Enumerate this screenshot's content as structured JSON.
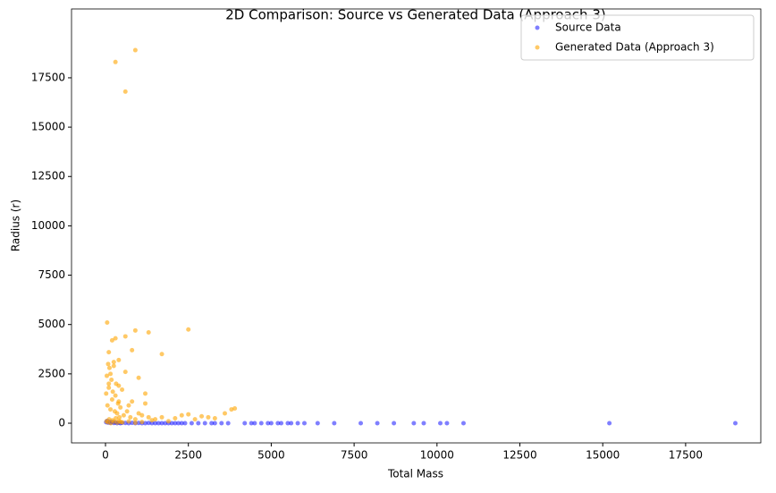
{
  "chart_data": {
    "type": "scatter",
    "title": "2D Comparison: Source vs Generated Data (Approach 3)",
    "x_label": "Total Mass",
    "y_label": "Radius (r)",
    "xlim": [
      -1025,
      19768
    ],
    "ylim": [
      -997,
      20988
    ],
    "xticks": [
      0,
      2500,
      5000,
      7500,
      10000,
      12500,
      15000,
      17500
    ],
    "yticks": [
      0,
      2500,
      5000,
      7500,
      10000,
      12500,
      15000,
      17500
    ],
    "legend": "upper right",
    "series": [
      {
        "name": "Source Data",
        "color": "blue",
        "x": [
          20,
          50,
          80,
          120,
          150,
          200,
          250,
          300,
          350,
          400,
          450,
          500,
          600,
          700,
          800,
          900,
          1000,
          1100,
          1200,
          1300,
          1400,
          1500,
          1600,
          1700,
          1800,
          1900,
          2000,
          2100,
          2200,
          2300,
          2400,
          2600,
          2800,
          3000,
          3200,
          3300,
          3500,
          3700,
          4200,
          4400,
          4500,
          4700,
          4900,
          5000,
          5200,
          5300,
          5500,
          5600,
          5800,
          6000,
          6400,
          6900,
          7700,
          8200,
          8700,
          9300,
          9600,
          10100,
          10300,
          10800,
          15200,
          19000
        ],
        "y": [
          50,
          120,
          30,
          80,
          20,
          60,
          10,
          40,
          0,
          30,
          0,
          20,
          10,
          0,
          20,
          0,
          10,
          0,
          0,
          10,
          0,
          0,
          0,
          0,
          0,
          0,
          0,
          0,
          0,
          0,
          0,
          0,
          0,
          0,
          0,
          0,
          0,
          0,
          0,
          0,
          0,
          0,
          0,
          0,
          0,
          0,
          0,
          0,
          0,
          0,
          0,
          0,
          0,
          0,
          0,
          0,
          0,
          0,
          0,
          0,
          0,
          0
        ]
      },
      {
        "name": "Generated Data (Approach 3)",
        "color": "orange",
        "x": [
          20,
          40,
          60,
          80,
          100,
          120,
          150,
          180,
          200,
          220,
          250,
          280,
          300,
          320,
          350,
          380,
          400,
          420,
          450,
          500,
          550,
          600,
          650,
          700,
          750,
          800,
          900,
          1000,
          1100,
          1200,
          1300,
          1400,
          1500,
          1700,
          1900,
          2100,
          2300,
          2500,
          2700,
          2900,
          3100,
          3300,
          3600,
          3800,
          3900,
          50,
          100,
          200,
          300,
          150,
          250,
          400,
          600,
          900,
          1300,
          2500,
          1700,
          100,
          400,
          800,
          1000,
          1200,
          300,
          900,
          600,
          30,
          70,
          110,
          160,
          210,
          260,
          310,
          360,
          410,
          460,
          510,
          700,
          900,
          1100
        ],
        "y": [
          1500,
          2400,
          900,
          3000,
          1800,
          2800,
          700,
          2200,
          1200,
          1600,
          2900,
          600,
          1400,
          2000,
          500,
          1000,
          1100,
          300,
          800,
          1700,
          400,
          2600,
          600,
          900,
          300,
          1100,
          200,
          500,
          400,
          1000,
          300,
          150,
          200,
          300,
          100,
          250,
          400,
          450,
          200,
          350,
          300,
          250,
          500,
          700,
          750,
          5100,
          3600,
          4200,
          4300,
          2500,
          3100,
          3200,
          4400,
          4700,
          4600,
          4750,
          3500,
          2000,
          1900,
          3700,
          2300,
          1500,
          18300,
          18900,
          16800,
          100,
          50,
          200,
          0,
          150,
          80,
          250,
          30,
          120,
          60,
          40,
          90,
          20,
          60
        ]
      }
    ]
  }
}
